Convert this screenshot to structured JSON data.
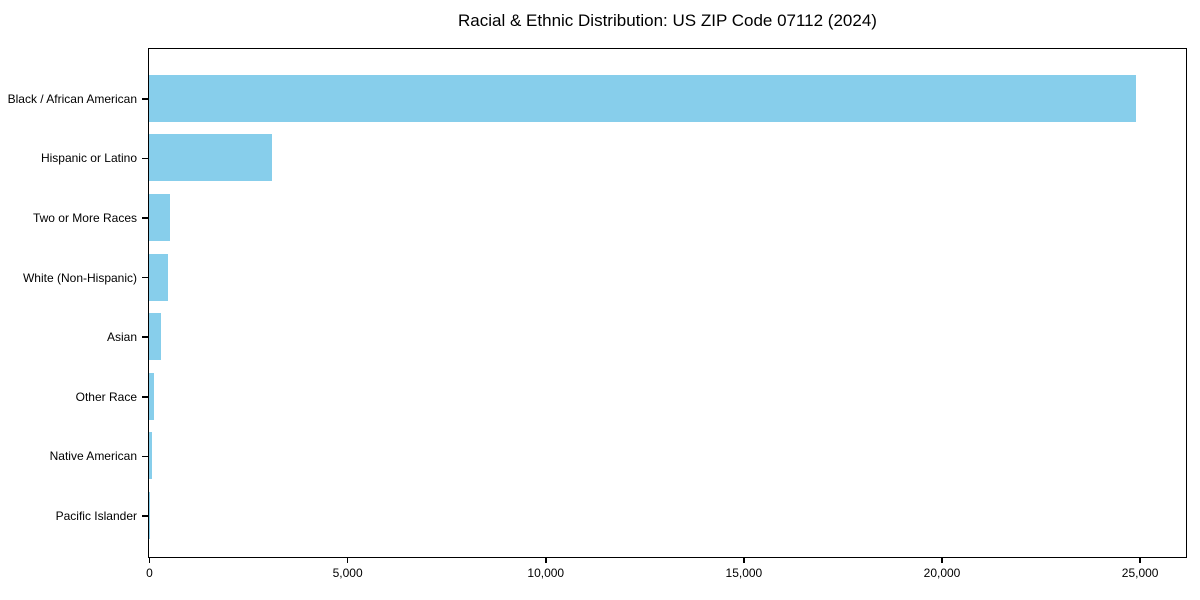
{
  "chart_data": {
    "type": "bar",
    "orientation": "horizontal",
    "title": "Racial & Ethnic Distribution: US ZIP Code 07112 (2024)",
    "categories": [
      "Black / African American",
      "Hispanic or Latino",
      "Two or More Races",
      "White (Non-Hispanic)",
      "Asian",
      "Other Race",
      "Native American",
      "Pacific Islander"
    ],
    "values": [
      24900,
      3100,
      530,
      480,
      300,
      120,
      85,
      10
    ],
    "xlabel": "",
    "ylabel": "",
    "x_ticks": [
      0,
      5000,
      10000,
      15000,
      20000,
      25000
    ],
    "x_tick_labels": [
      "0",
      "5,000",
      "10,000",
      "15,000",
      "20,000",
      "25,000"
    ],
    "xlim": [
      0,
      26145
    ],
    "grid": false,
    "legend": null,
    "bar_color": "#87CEEB",
    "spine_color": "#000000",
    "background_color": "#ffffff"
  }
}
